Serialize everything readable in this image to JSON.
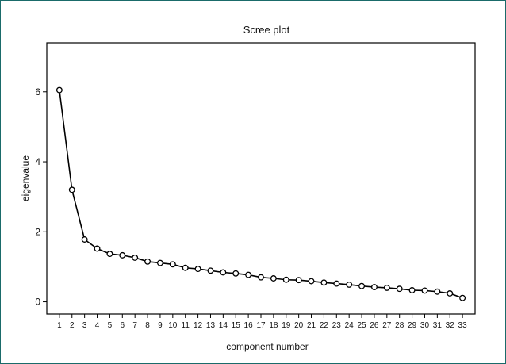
{
  "chart_data": {
    "type": "line",
    "title": "Scree plot",
    "xlabel": "component number",
    "ylabel": "eigenvalue",
    "x": [
      1,
      2,
      3,
      4,
      5,
      6,
      7,
      8,
      9,
      10,
      11,
      12,
      13,
      14,
      15,
      16,
      17,
      18,
      19,
      20,
      21,
      22,
      23,
      24,
      25,
      26,
      27,
      28,
      29,
      30,
      31,
      32,
      33
    ],
    "series": [
      {
        "values": [
          6.05,
          3.2,
          1.78,
          1.52,
          1.37,
          1.33,
          1.26,
          1.15,
          1.11,
          1.07,
          0.97,
          0.94,
          0.89,
          0.84,
          0.81,
          0.77,
          0.7,
          0.67,
          0.63,
          0.62,
          0.59,
          0.55,
          0.52,
          0.49,
          0.45,
          0.42,
          0.4,
          0.37,
          0.33,
          0.32,
          0.29,
          0.24,
          0.11
        ]
      }
    ],
    "xlim": [
      0,
      34
    ],
    "ylim": [
      -0.35,
      7.4
    ],
    "yticks": [
      0,
      2,
      4,
      6
    ],
    "grid": false,
    "colors": {
      "line": "#000000",
      "frame": "#1a6b6a"
    }
  }
}
